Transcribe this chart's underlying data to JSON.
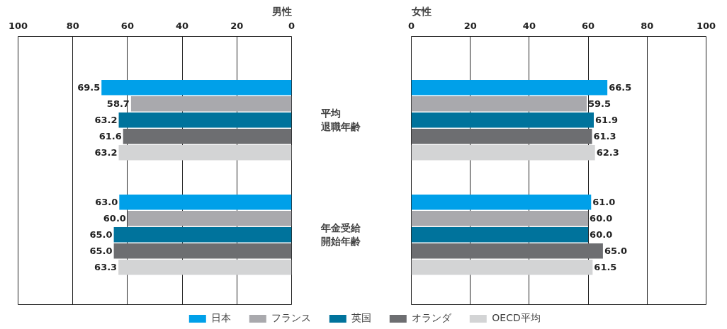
{
  "chart_data": [
    {
      "type": "bar",
      "orientation": "horizontal",
      "title": "男性",
      "categories": [
        "平均退職年齢",
        "年金受給開始年齢"
      ],
      "xlim": [
        100,
        0
      ],
      "xticks": [
        0,
        20,
        40,
        60,
        80,
        100
      ],
      "grid": "x",
      "legend": false,
      "series": [
        {
          "color": "#00a0e9",
          "values": [
            69.5,
            63.0
          ],
          "value_labels": [
            "69.5",
            "63.0"
          ]
        },
        {
          "color": "#a9a9ad",
          "values": [
            58.7,
            60.0
          ],
          "value_labels": [
            "58.7",
            "60.0"
          ]
        },
        {
          "color": "#00739c",
          "values": [
            63.2,
            65.0
          ],
          "value_labels": [
            "63.2",
            "65.0"
          ]
        },
        {
          "color": "#6d6e71",
          "values": [
            61.6,
            65.0
          ],
          "value_labels": [
            "61.6",
            "65.0"
          ]
        },
        {
          "color": "#d3d4d5",
          "values": [
            63.2,
            63.3
          ],
          "value_labels": [
            "63.2",
            "63.3"
          ]
        }
      ]
    },
    {
      "type": "bar",
      "orientation": "horizontal",
      "title": "女性",
      "categories": [
        "平均退職年齢",
        "年金受給開始年齢"
      ],
      "xlim": [
        0,
        100
      ],
      "xticks": [
        0,
        20,
        40,
        60,
        80,
        100
      ],
      "grid": "x",
      "legend": "bottom",
      "tick_labels": "x",
      "series": [
        {
          "name": "日本",
          "color": "#00a0e9",
          "values": [
            66.5,
            61.0
          ],
          "value_labels": [
            "66.5",
            "61.0"
          ]
        },
        {
          "name": "フランス",
          "color": "#a9a9ad",
          "values": [
            59.5,
            60.0
          ],
          "value_labels": [
            "59.5",
            "60.0"
          ]
        },
        {
          "name": "英国",
          "color": "#00739c",
          "values": [
            61.9,
            60.0
          ],
          "value_labels": [
            "61.9",
            "60.0"
          ]
        },
        {
          "name": "オランダ",
          "color": "#6d6e71",
          "values": [
            61.3,
            65.0
          ],
          "value_labels": [
            "61.3",
            "65.0"
          ]
        },
        {
          "name": "OECD平均",
          "color": "#d3d4d5",
          "values": [
            62.3,
            61.5
          ],
          "value_labels": [
            "62.3",
            "61.5"
          ]
        }
      ]
    }
  ]
}
